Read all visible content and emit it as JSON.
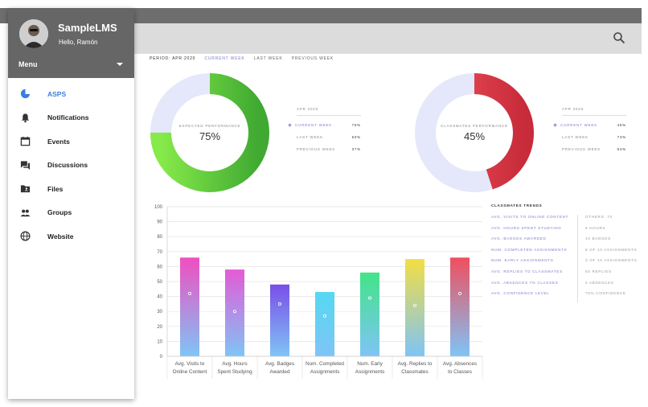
{
  "app": {
    "name": "SampleLMS",
    "greeting": "Hello, Ramón",
    "menu_label": "Menu"
  },
  "nav": [
    {
      "label": "ASPS",
      "icon": "pie-chart-icon",
      "active": true
    },
    {
      "label": "Notifications",
      "icon": "bell-icon"
    },
    {
      "label": "Events",
      "icon": "calendar-icon"
    },
    {
      "label": "Discussions",
      "icon": "forum-icon"
    },
    {
      "label": "Files",
      "icon": "folder-icon"
    },
    {
      "label": "Groups",
      "icon": "group-icon"
    },
    {
      "label": "Website",
      "icon": "globe-icon"
    }
  ],
  "period": {
    "label": "PERIOD: APR 2020",
    "tabs": [
      "CURRENT WEEK",
      "LAST WEEK",
      "PREVIOUS WEEK"
    ]
  },
  "expected": {
    "caption": "EXPECTED PERFORMANCE",
    "value_text": "75%",
    "value": 75,
    "color": "#5cc43c",
    "legend_title": "APR 2020",
    "rows": [
      {
        "label": "CURRENT WEEK",
        "value": "75%"
      },
      {
        "label": "LAST WEEK",
        "value": "50%"
      },
      {
        "label": "PREVIOUS WEEK",
        "value": "37%"
      }
    ]
  },
  "classmates": {
    "caption": "CLASSMATES PERFORMANCE",
    "value_text": "45%",
    "value": 45,
    "color": "#e0424e",
    "legend_title": "APR 2020",
    "rows": [
      {
        "label": "CURRENT WEEK",
        "value": "45%"
      },
      {
        "label": "LAST WEEK",
        "value": "73%"
      },
      {
        "label": "PREVIOUS WEEK",
        "value": "54%"
      }
    ]
  },
  "chart_data": {
    "type": "bar",
    "categories": [
      [
        "Avg. Visits to",
        "Online Content"
      ],
      [
        "Avg. Hours",
        "Spent Studying"
      ],
      [
        "Avg. Badges",
        "Awarded"
      ],
      [
        "Num. Completed",
        "Assignments"
      ],
      [
        "Num. Early",
        "Assignments"
      ],
      [
        "Avg. Replies to",
        "Classmates"
      ],
      [
        "Avg. Absences",
        "to Classes"
      ]
    ],
    "values": [
      66,
      58,
      48,
      43,
      56,
      65,
      66
    ],
    "markers": [
      42,
      30,
      35,
      27,
      39,
      34,
      42
    ],
    "top_colors": [
      "#ef4fc0",
      "#e45bd6",
      "#7a4ee8",
      "#55d8f2",
      "#42e489",
      "#f2de43",
      "#ef4f5f"
    ],
    "bottom_color": "#7fc4f6",
    "ylim": [
      0,
      100
    ],
    "yticks": [
      0,
      10,
      20,
      30,
      40,
      50,
      60,
      70,
      80,
      90,
      100
    ],
    "grid": true
  },
  "trends": {
    "title": "CLASSMATES TRENDS",
    "rows": [
      {
        "key": "AVG. VISITS TO ONLINE CONTENT",
        "value": "OTHERS: 70"
      },
      {
        "key": "AVG. HOURS SPENT STUDYING",
        "value": "6 HOURS"
      },
      {
        "key": "AVG. BADGES AWARDED",
        "value": "10 BADGES"
      },
      {
        "key": "NUM. COMPLETED ASSIGNMENTS",
        "value": "8 OF 10 ASSIGNMENTS"
      },
      {
        "key": "NUM. EARLY ASSIGNMENTS",
        "value": "3 OF 10 ASSIGNMENTS"
      },
      {
        "key": "AVG. REPLIES TO CLASSMATES",
        "value": "50 REPLIES"
      },
      {
        "key": "AVG. ABSENCES TO CLASSES",
        "value": "2 ABSENCES"
      },
      {
        "key": "AVG. CONFIDENCE LEVEL",
        "value": "75% CONFIDENCE"
      }
    ]
  }
}
